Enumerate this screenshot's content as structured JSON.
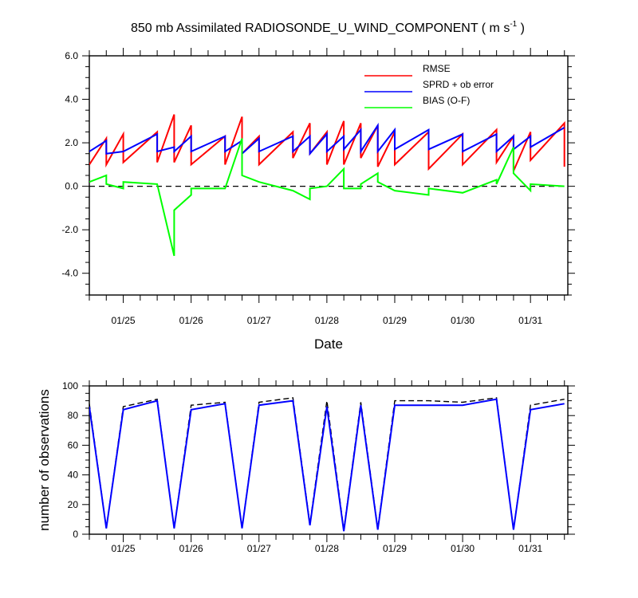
{
  "chart_data": [
    {
      "type": "line",
      "title_prefix": "850 mb Assimilated RADIOSONDE_U_WIND_COMPONENT ( m s",
      "title_superscript": "-1",
      "title_suffix": " )",
      "xlabel": "Date",
      "ylabel": "",
      "xlim": [
        0,
        7.05
      ],
      "ylim": [
        -5,
        6
      ],
      "yticks": [
        -4,
        -2,
        0,
        2,
        4,
        6
      ],
      "ytick_labels": [
        "-4.0",
        "-2.0",
        "0.0",
        "2.0",
        "4.0",
        "6.0"
      ],
      "xticks": [
        0.5,
        1.5,
        2.5,
        3.5,
        4.5,
        5.5,
        6.5
      ],
      "xtick_labels": [
        "01/25",
        "01/26",
        "01/27",
        "01/28",
        "01/29",
        "01/30",
        "01/31"
      ],
      "zero_line": true,
      "legend_position": "top-right",
      "series": [
        {
          "name": "RMSE",
          "color": "#ff0000",
          "x": [
            0,
            0.25,
            0.25,
            0.5,
            0.5,
            1.0,
            1.0,
            1.25,
            1.25,
            1.5,
            1.5,
            2.0,
            2.0,
            2.25,
            2.25,
            2.5,
            2.5,
            3.0,
            3.0,
            3.25,
            3.25,
            3.5,
            3.5,
            3.75,
            3.75,
            4.0,
            4.0,
            4.25,
            4.25,
            4.5,
            4.5,
            5.0,
            5.0,
            5.5,
            5.5,
            6.0,
            6.0,
            6.25,
            6.25,
            6.5,
            6.5,
            7.0,
            7.0
          ],
          "y": [
            1.0,
            2.2,
            1.0,
            2.4,
            1.1,
            2.5,
            1.1,
            3.3,
            1.1,
            2.8,
            1.0,
            2.3,
            1.0,
            3.2,
            1.5,
            2.3,
            1.0,
            2.5,
            1.3,
            2.9,
            1.5,
            2.5,
            1.0,
            3.0,
            1.0,
            2.9,
            1.3,
            2.8,
            0.9,
            2.5,
            1.0,
            2.5,
            0.8,
            2.4,
            1.0,
            2.6,
            1.1,
            2.3,
            0.7,
            2.5,
            1.2,
            2.9,
            0.9
          ]
        },
        {
          "name": "SPRD + ob error",
          "color": "#0000ff",
          "x": [
            0,
            0.25,
            0.25,
            0.5,
            1.0,
            1.0,
            1.25,
            1.25,
            1.5,
            1.5,
            2.0,
            2.0,
            2.25,
            2.25,
            2.5,
            2.5,
            3.0,
            3.0,
            3.25,
            3.25,
            3.5,
            3.5,
            3.75,
            3.75,
            4.0,
            4.0,
            4.25,
            4.25,
            4.5,
            4.5,
            5.0,
            5.0,
            5.5,
            5.5,
            6.0,
            6.0,
            6.25,
            6.25,
            6.5,
            6.5,
            7.0
          ],
          "y": [
            1.6,
            2.1,
            1.5,
            1.6,
            2.4,
            1.6,
            1.8,
            1.6,
            2.3,
            1.6,
            2.3,
            1.6,
            2.1,
            1.5,
            2.2,
            1.6,
            2.3,
            1.6,
            2.3,
            1.5,
            2.4,
            1.6,
            2.3,
            1.7,
            2.6,
            1.6,
            2.8,
            1.6,
            2.6,
            1.7,
            2.6,
            1.7,
            2.4,
            1.6,
            2.4,
            1.6,
            2.3,
            1.7,
            2.3,
            1.8,
            2.7
          ]
        },
        {
          "name": "BIAS (O-F)",
          "color": "#00ff00",
          "x": [
            0,
            0.25,
            0.25,
            0.5,
            0.5,
            1.0,
            1.25,
            1.25,
            1.5,
            1.5,
            2.0,
            2.25,
            2.25,
            2.5,
            3.0,
            3.25,
            3.25,
            3.5,
            3.75,
            3.75,
            4.0,
            4.0,
            4.25,
            4.25,
            4.5,
            5.0,
            5.0,
            5.5,
            6.0,
            6.0,
            6.25,
            6.25,
            6.5,
            6.5,
            7.0
          ],
          "y": [
            0.2,
            0.5,
            0.1,
            -0.1,
            0.2,
            0.1,
            -3.2,
            -1.1,
            -0.4,
            -0.1,
            -0.1,
            2.2,
            0.5,
            0.2,
            -0.2,
            -0.6,
            -0.1,
            0.0,
            0.8,
            -0.1,
            -0.1,
            0.1,
            0.6,
            0.2,
            -0.2,
            -0.4,
            -0.1,
            -0.3,
            0.3,
            0.1,
            1.8,
            0.6,
            -0.2,
            0.1,
            0.0
          ]
        }
      ]
    },
    {
      "type": "line",
      "xlabel": "",
      "ylabel": "number of observations",
      "xlim": [
        0,
        7.05
      ],
      "ylim": [
        0,
        100
      ],
      "yticks": [
        0,
        20,
        40,
        60,
        80,
        100
      ],
      "ytick_labels": [
        "0",
        "20",
        "40",
        "60",
        "80",
        "100"
      ],
      "xticks": [
        0.5,
        1.5,
        2.5,
        3.5,
        4.5,
        5.5,
        6.5
      ],
      "xtick_labels": [
        "01/25",
        "01/26",
        "01/27",
        "01/28",
        "01/29",
        "01/30",
        "01/31"
      ],
      "series": [
        {
          "color": "#000000",
          "dashed": true,
          "x": [
            0,
            0.25,
            0.5,
            1.0,
            1.25,
            1.5,
            2.0,
            2.25,
            2.5,
            3.0,
            3.25,
            3.5,
            3.75,
            4.0,
            4.25,
            4.5,
            5.0,
            5.5,
            6.0,
            6.25,
            6.5,
            7.0
          ],
          "y": [
            88,
            4,
            86,
            91,
            4,
            87,
            89,
            4,
            89,
            92,
            7,
            90,
            3,
            89,
            4,
            90,
            90,
            89,
            92,
            3,
            87,
            91
          ]
        },
        {
          "color": "#0000ff",
          "dashed": false,
          "x": [
            0,
            0.25,
            0.5,
            1.0,
            1.25,
            1.5,
            2.0,
            2.25,
            2.5,
            3.0,
            3.25,
            3.5,
            3.75,
            4.0,
            4.25,
            4.5,
            5.0,
            5.5,
            6.0,
            6.25,
            6.5,
            7.0
          ],
          "y": [
            86,
            4,
            84,
            90,
            4,
            84,
            88,
            4,
            87,
            90,
            6,
            86,
            2,
            87,
            3,
            87,
            87,
            87,
            91,
            3,
            84,
            88
          ]
        }
      ]
    }
  ]
}
